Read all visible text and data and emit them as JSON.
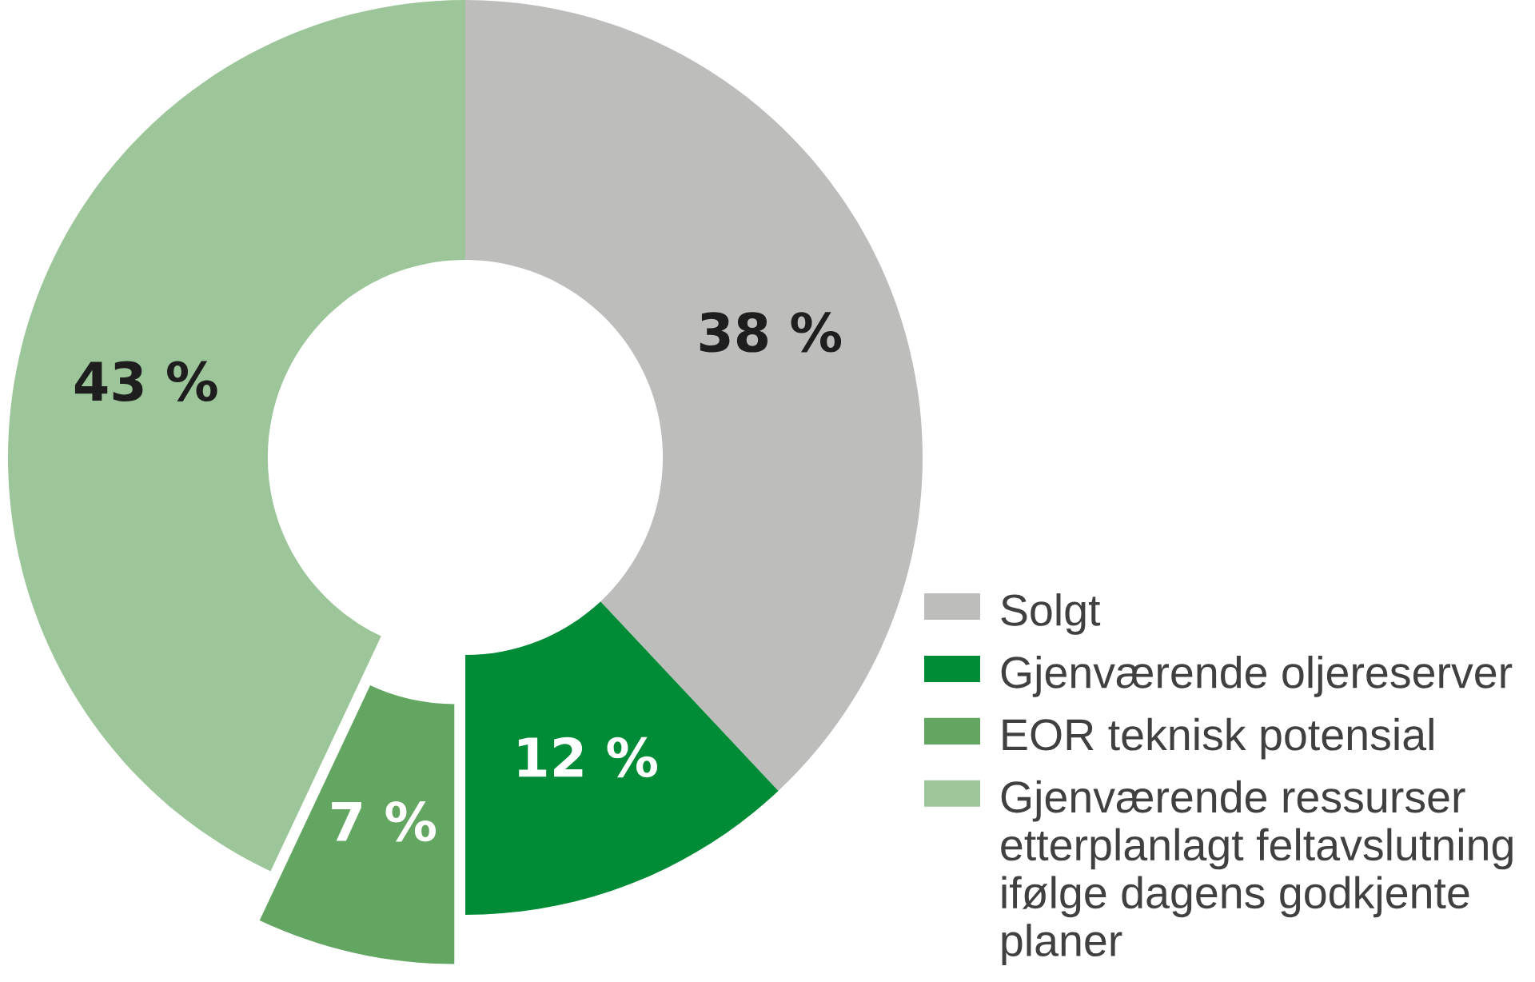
{
  "chart_data": {
    "type": "donut",
    "categories": [
      "Solgt",
      "Gjenværende oljereserver",
      "EOR teknisk potensial",
      "Gjenværende ressurser\netterplanlagt feltavslutning\nifølge dagens godkjente\nplaner"
    ],
    "values": [
      38,
      12,
      7,
      43
    ],
    "colors": [
      "#bdbdbb",
      "#008b36",
      "#62a662",
      "#9cc599"
    ],
    "value_labels": [
      "38 %",
      "12 %",
      "7 %",
      "43 %"
    ],
    "legend": "bottom right"
  }
}
